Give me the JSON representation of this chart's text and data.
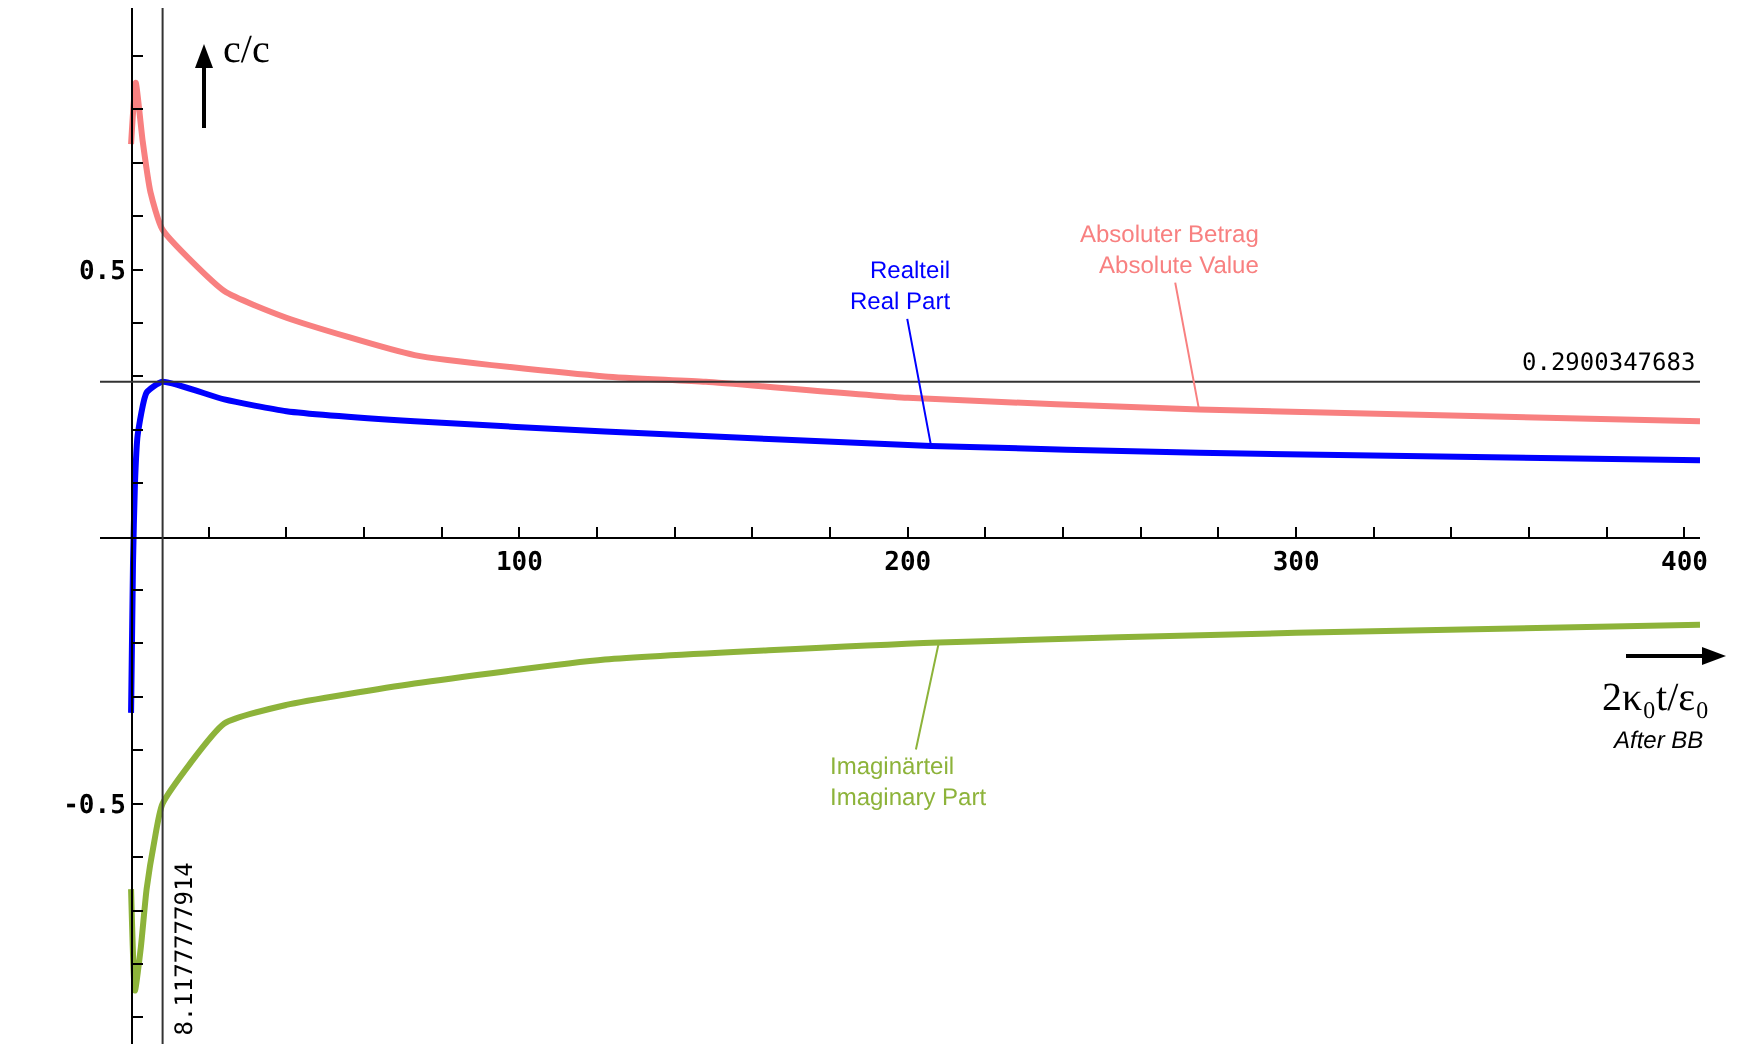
{
  "chart_data": {
    "type": "line",
    "xlabel": "2κ₀t/ε₀",
    "ylabel": "c/c",
    "series": [
      {
        "color": "#f88080",
        "x": [
          0,
          1.2,
          3,
          5,
          8.1,
          24,
          40,
          73,
          122,
          148,
          200,
          275,
          404
        ],
        "values": [
          0.735,
          0.85,
          0.74,
          0.645,
          0.575,
          0.46,
          0.41,
          0.34,
          0.3,
          0.29,
          0.26,
          0.238,
          0.216
        ]
      },
      {
        "color": "#0000ff",
        "x": [
          0,
          0.5,
          1,
          1.7,
          4,
          8.1,
          24,
          40,
          73,
          122,
          206,
          275,
          404
        ],
        "values": [
          -0.33,
          -0.05,
          0.1,
          0.19,
          0.27,
          0.29,
          0.257,
          0.235,
          0.216,
          0.197,
          0.17,
          0.157,
          0.143
        ]
      },
      {
        "color": "#8db33a",
        "x": [
          0,
          1,
          2.5,
          4,
          6,
          8.1,
          24,
          40,
          73,
          122,
          208,
          300,
          404
        ],
        "values": [
          -0.66,
          -0.85,
          -0.77,
          -0.66,
          -0.57,
          -0.5,
          -0.35,
          -0.315,
          -0.275,
          -0.23,
          -0.198,
          -0.18,
          -0.165
        ]
      }
    ],
    "xlim": [
      -8,
      404
    ],
    "ylim": [
      -0.95,
      0.99
    ],
    "xticks": [
      {
        "value": 20,
        "label": null
      },
      {
        "value": 40,
        "label": null
      },
      {
        "value": 60,
        "label": null
      },
      {
        "value": 80,
        "label": null
      },
      100,
      {
        "value": 120,
        "label": null
      },
      {
        "value": 140,
        "label": null
      },
      {
        "value": 160,
        "label": null
      },
      {
        "value": 180,
        "label": null
      },
      200,
      {
        "value": 220,
        "label": null
      },
      {
        "value": 240,
        "label": null
      },
      {
        "value": 260,
        "label": null
      },
      {
        "value": 280,
        "label": null
      },
      300,
      {
        "value": 320,
        "label": null
      },
      {
        "value": 340,
        "label": null
      },
      {
        "value": 360,
        "label": null
      },
      {
        "value": 380,
        "label": null
      },
      400
    ],
    "yticks": [
      {
        "value": -0.9,
        "label": null
      },
      {
        "value": -0.8,
        "label": null
      },
      {
        "value": -0.7,
        "label": null
      },
      {
        "value": -0.6,
        "label": null
      },
      -0.5,
      {
        "value": -0.4,
        "label": null
      },
      {
        "value": -0.3,
        "label": null
      },
      {
        "value": -0.2,
        "label": null
      },
      {
        "value": -0.1,
        "label": null
      },
      {
        "value": 0.1,
        "label": null
      },
      {
        "value": 0.2,
        "label": null
      },
      {
        "value": 0.3,
        "label": null
      },
      {
        "value": 0.4,
        "label": null
      },
      0.5,
      {
        "value": 0.6,
        "label": null
      },
      {
        "value": 0.7,
        "label": null
      },
      {
        "value": 0.8,
        "label": null
      },
      {
        "value": 0.9,
        "label": null
      }
    ],
    "ref_lines": [
      {
        "axis": "y",
        "value": 0.2900347683,
        "label": "0.2900347683",
        "color": "#333333"
      },
      {
        "axis": "x",
        "value": 8.1177777914,
        "label": "8.1177777914",
        "color": "#333333"
      }
    ],
    "annotations": [
      {
        "text": "Realteil\nReal Part",
        "x": 206,
        "y": 0.17
      },
      {
        "text": "Absoluter Betrag\nAbsolute Value",
        "x": 275,
        "y": 0.238
      },
      {
        "text": "Imaginärteil\nImaginary Part",
        "x": 208,
        "y": -0.198
      },
      "After BB"
    ],
    "grid": false,
    "marker": "none",
    "line_style": "solid"
  }
}
